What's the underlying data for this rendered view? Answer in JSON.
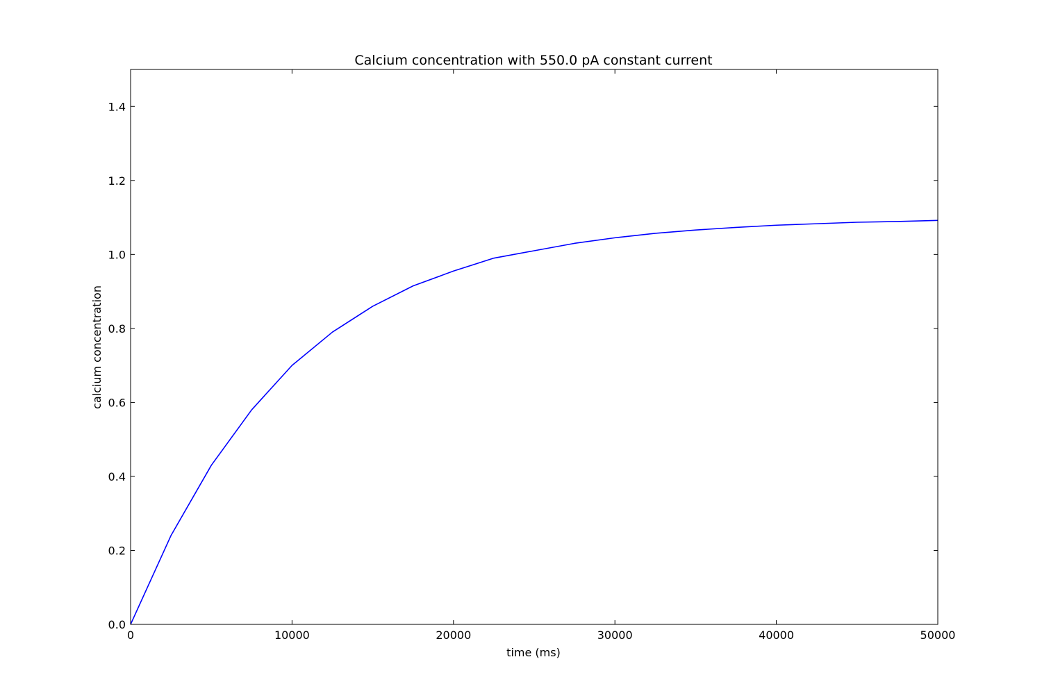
{
  "chart_data": {
    "type": "line",
    "title": "Calcium concentration with 550.0 pA constant current",
    "xlabel": "time (ms)",
    "ylabel": "calcium concentration",
    "xlim": [
      0,
      50000
    ],
    "ylim": [
      0,
      1.5
    ],
    "xticks": [
      0,
      10000,
      20000,
      30000,
      40000,
      50000
    ],
    "xtick_labels": [
      "0",
      "10000",
      "20000",
      "30000",
      "40000",
      "50000"
    ],
    "yticks": [
      0.0,
      0.2,
      0.4,
      0.6,
      0.8,
      1.0,
      1.2,
      1.4
    ],
    "ytick_labels": [
      "0.0",
      "0.2",
      "0.4",
      "0.6",
      "0.8",
      "1.0",
      "1.2",
      "1.4"
    ],
    "grid": false,
    "series": [
      {
        "color": "#0000ff",
        "x": [
          0,
          2500,
          5000,
          7500,
          10000,
          12500,
          15000,
          17500,
          20000,
          22500,
          25000,
          27500,
          30000,
          32500,
          35000,
          37500,
          40000,
          42500,
          45000,
          47500,
          50000
        ],
        "y": [
          0.0,
          0.24,
          0.43,
          0.58,
          0.7,
          0.79,
          0.86,
          0.915,
          0.955,
          0.99,
          1.01,
          1.03,
          1.045,
          1.057,
          1.066,
          1.073,
          1.079,
          1.083,
          1.087,
          1.089,
          1.092
        ]
      }
    ]
  }
}
